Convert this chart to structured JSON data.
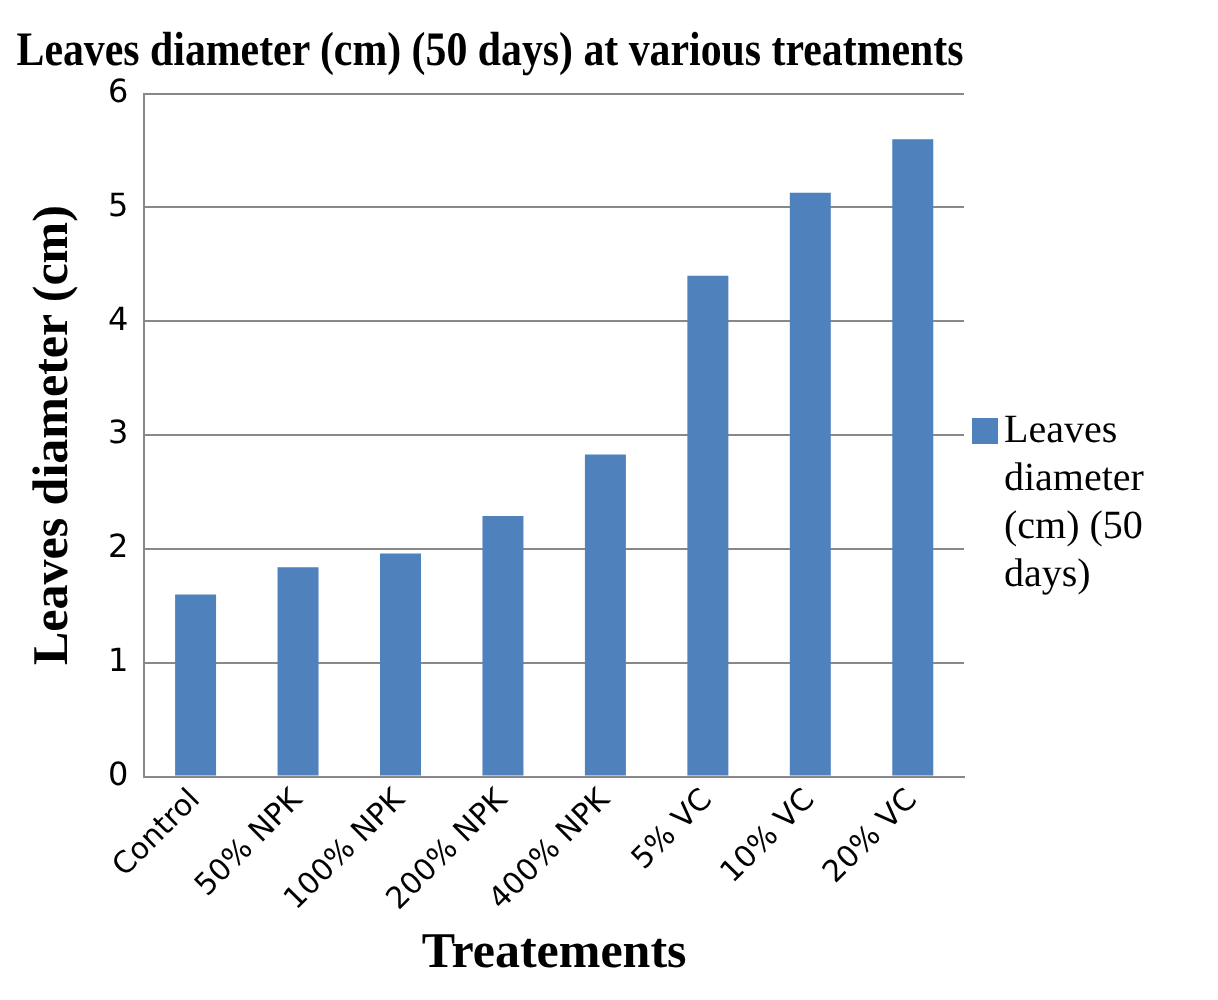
{
  "chart_data": {
    "type": "bar",
    "title": "Leaves diameter (cm) (50 days) at various treatments",
    "xlabel": "Treatements",
    "ylabel": "Leaves diameter (cm)",
    "categories": [
      "Control",
      "50% NPK",
      "100% NPK",
      "200% NPK",
      "400% NPK",
      "5% VC",
      "10% VC",
      "20% VC"
    ],
    "series": [
      {
        "name": "Leaves diameter (cm) (50 days)",
        "color": "#4f81bd",
        "values": [
          1.6,
          1.84,
          1.96,
          2.29,
          2.83,
          4.4,
          5.13,
          5.6
        ]
      }
    ],
    "ylim": [
      0,
      6
    ],
    "yticks": [
      0,
      1,
      2,
      3,
      4,
      5,
      6
    ],
    "grid": "y",
    "legend": "right"
  }
}
